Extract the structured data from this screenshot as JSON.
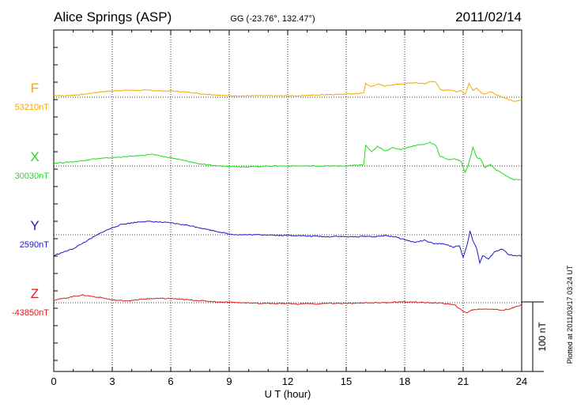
{
  "chart_data": {
    "type": "line",
    "title": "Alice Springs (ASP)",
    "subtitle": "GG (-23.76°, 132.47°)",
    "date": "2011/02/14",
    "xlabel": "U T (hour)",
    "xlim": [
      0,
      24
    ],
    "x_ticks": [
      "0",
      "3",
      "6",
      "9",
      "12",
      "15",
      "18",
      "21",
      "24"
    ],
    "scale_label": "100 nT",
    "scale_nT": 100,
    "footer": "Plotted at 2011/03/17 03:24 UT",
    "grid": true,
    "series": [
      {
        "name": "F",
        "baseline_label": "53210nT",
        "color": "#f5a800",
        "x": [
          0,
          0.5,
          1,
          1.5,
          2,
          2.5,
          3,
          3.5,
          4,
          4.5,
          5,
          5.5,
          6,
          6.5,
          7,
          7.5,
          8,
          8.5,
          9,
          9.5,
          10,
          10.5,
          11,
          11.5,
          12,
          12.5,
          13,
          13.5,
          14,
          14.5,
          15,
          15.5,
          15.9,
          16.0,
          16.3,
          16.6,
          17,
          17.4,
          17.8,
          18.2,
          18.6,
          19,
          19.3,
          19.6,
          19.8,
          20.0,
          20.3,
          20.6,
          20.9,
          21.1,
          21.3,
          21.5,
          21.7,
          21.9,
          22.1,
          22.4,
          22.7,
          23,
          23.3,
          23.6,
          24
        ],
        "y": [
          3,
          2,
          3,
          4,
          6,
          8,
          9,
          10,
          10,
          10,
          10,
          9,
          9,
          8,
          7,
          5,
          4,
          3,
          2,
          2,
          2,
          2,
          2,
          2,
          2,
          2,
          3,
          3,
          4,
          4,
          5,
          5,
          6,
          20,
          15,
          19,
          16,
          18,
          19,
          20,
          21,
          19,
          23,
          22,
          12,
          10,
          11,
          8,
          9,
          4,
          20,
          10,
          13,
          7,
          5,
          8,
          4,
          1,
          -3,
          -6,
          -4
        ]
      },
      {
        "name": "X",
        "baseline_label": "30030nT",
        "color": "#19e019",
        "x": [
          0,
          0.5,
          1,
          1.5,
          2,
          2.5,
          3,
          3.5,
          4,
          4.5,
          5,
          5.5,
          6,
          6.5,
          7,
          7.5,
          8,
          8.5,
          9,
          9.5,
          10,
          10.5,
          11,
          11.5,
          12,
          12.5,
          13,
          13.5,
          14,
          14.5,
          15,
          15.5,
          15.9,
          16.0,
          16.3,
          16.6,
          17,
          17.4,
          17.8,
          18.2,
          18.6,
          19,
          19.3,
          19.6,
          19.8,
          20.0,
          20.3,
          20.6,
          20.9,
          21.1,
          21.3,
          21.5,
          21.7,
          21.9,
          22.1,
          22.4,
          22.7,
          23,
          23.3,
          23.6,
          24
        ],
        "y": [
          4,
          5,
          6,
          8,
          10,
          11,
          12,
          13,
          14,
          15,
          17,
          14,
          12,
          9,
          6,
          3,
          1,
          0,
          0,
          -1,
          -1,
          -1,
          0,
          0,
          0,
          0,
          0,
          0,
          0,
          0,
          0,
          1,
          2,
          30,
          20,
          28,
          22,
          26,
          24,
          27,
          30,
          31,
          34,
          30,
          14,
          12,
          9,
          10,
          7,
          -10,
          5,
          27,
          12,
          10,
          -2,
          2,
          -6,
          -10,
          -16,
          -20,
          -19
        ]
      },
      {
        "name": "Y",
        "baseline_label": "2590nT",
        "color": "#1a1acc",
        "x": [
          0,
          0.5,
          1,
          1.5,
          2,
          2.5,
          3,
          3.5,
          4,
          4.5,
          5,
          5.5,
          6,
          6.5,
          7,
          7.5,
          8,
          8.5,
          9,
          9.5,
          10,
          10.5,
          11,
          11.5,
          12,
          12.5,
          13,
          13.5,
          14,
          14.5,
          15,
          15.5,
          16,
          16.5,
          17,
          17.5,
          18,
          18.5,
          19,
          19.5,
          20,
          20.5,
          20.8,
          21.0,
          21.2,
          21.35,
          21.5,
          21.7,
          21.85,
          22.0,
          22.3,
          22.6,
          23,
          23.3,
          23.6,
          24
        ],
        "y": [
          -30,
          -25,
          -20,
          -12,
          -4,
          4,
          10,
          15,
          17,
          19,
          19,
          18,
          17,
          15,
          13,
          10,
          7,
          4,
          1,
          0,
          0,
          0,
          0,
          -1,
          -1,
          -1,
          -2,
          -2,
          -3,
          -2,
          -3,
          -3,
          -2,
          -3,
          -1,
          -3,
          -7,
          -11,
          -8,
          -13,
          -13,
          -18,
          -15,
          -33,
          -15,
          5,
          -9,
          -20,
          -40,
          -30,
          -35,
          -25,
          -20,
          -28,
          -30,
          -30
        ]
      },
      {
        "name": "Z",
        "baseline_label": "-43850nT",
        "color": "#e01a1a",
        "x": [
          0,
          0.5,
          1,
          1.5,
          2,
          2.5,
          3,
          3.5,
          4,
          4.5,
          5,
          5.5,
          6,
          6.5,
          7,
          7.5,
          8,
          8.5,
          9,
          9.5,
          10,
          10.5,
          11,
          11.5,
          12,
          12.5,
          13,
          13.5,
          14,
          14.5,
          15,
          15.5,
          16,
          16.5,
          17,
          17.5,
          18,
          18.5,
          19,
          19.5,
          20,
          20.3,
          20.6,
          20.8,
          21.0,
          21.2,
          21.5,
          22,
          22.5,
          23,
          23.5,
          24
        ],
        "y": [
          4,
          6,
          9,
          11,
          9,
          7,
          4,
          3,
          3,
          5,
          6,
          6,
          6,
          5,
          4,
          3,
          2,
          1,
          1,
          0,
          0,
          -1,
          -1,
          -1,
          -1,
          -2,
          -1,
          -2,
          -1,
          -1,
          -1,
          -1,
          0,
          0,
          0,
          1,
          1,
          1,
          0,
          0,
          -1,
          -2,
          -4,
          -8,
          -13,
          -14,
          -10,
          -9,
          -9,
          -11,
          -8,
          -3
        ]
      }
    ]
  }
}
